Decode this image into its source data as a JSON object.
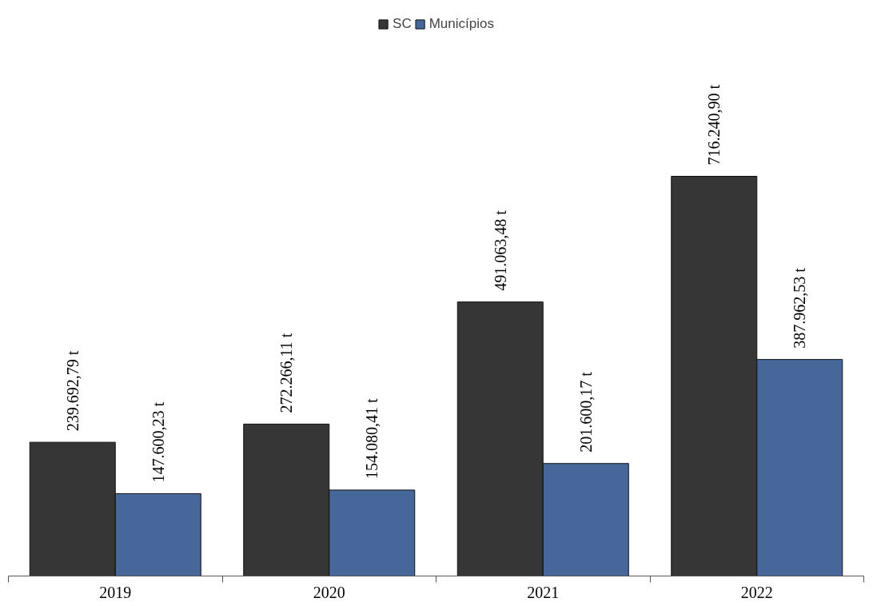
{
  "chart_data": {
    "type": "bar",
    "categories": [
      "2019",
      "2020",
      "2021",
      "2022"
    ],
    "series": [
      {
        "name": "SC",
        "color": "#2b2b2b",
        "values": [
          239692.79,
          272266.11,
          491063.48,
          716240.9
        ],
        "value_labels": [
          "239.692,79 t",
          "272.266,11 t",
          "491.063,48 t",
          "716.240,90 t"
        ]
      },
      {
        "name": "Municípios",
        "color": "#3d5f96",
        "values": [
          147600.23,
          154080.41,
          201600.17,
          387962.53
        ],
        "value_labels": [
          "147.600,23 t",
          "154.080,41 t",
          "201.600,17 t",
          "387.962,53 t"
        ]
      }
    ],
    "legend": "top",
    "grid": false
  }
}
